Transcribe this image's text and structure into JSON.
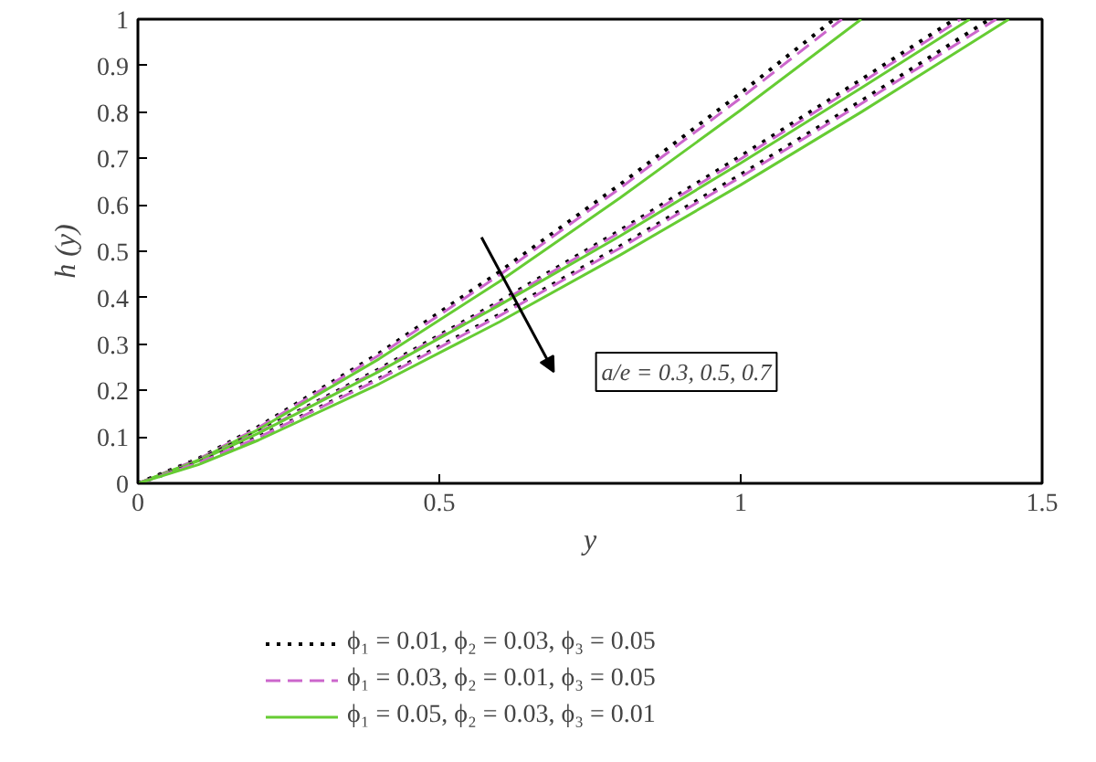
{
  "chart_data": {
    "type": "line",
    "xlabel": "y",
    "ylabel": "h (y)",
    "xlim": [
      0,
      1.5
    ],
    "ylim": [
      0,
      1
    ],
    "xticks": [
      0,
      0.5,
      1,
      1.5
    ],
    "yticks": [
      0,
      0.1,
      0.2,
      0.3,
      0.4,
      0.5,
      0.6,
      0.7,
      0.8,
      0.9,
      1
    ],
    "legend": "bottom",
    "series": [
      {
        "name": "ϕ₁ = 0.01, ϕ₂ = 0.03, ϕ₃ = 0.05",
        "color": "#000000",
        "line_style": "dotted",
        "x": [
          0,
          0.1,
          0.2,
          0.4,
          0.6,
          0.8,
          1.0,
          1.155
        ],
        "values": [
          0,
          0.053,
          0.122,
          0.28,
          0.456,
          0.644,
          0.841,
          1
        ]
      },
      {
        "name": "ϕ₁ = 0.03, ϕ₂ = 0.01, ϕ₃ = 0.05",
        "color": "#cc66cc",
        "line_style": "dashed",
        "x": [
          0,
          0.1,
          0.2,
          0.4,
          0.6,
          0.8,
          1.0,
          1.168
        ],
        "values": [
          0,
          0.052,
          0.12,
          0.276,
          0.449,
          0.636,
          0.83,
          1
        ]
      },
      {
        "name": "ϕ₁ = 0.05, ϕ₂ = 0.03, ϕ₃ = 0.01",
        "color": "#66cc33",
        "line_style": "solid",
        "x": [
          0,
          0.1,
          0.2,
          0.4,
          0.6,
          0.8,
          1.0,
          1.2
        ],
        "values": [
          0,
          0.05,
          0.116,
          0.268,
          0.435,
          0.615,
          0.804,
          1
        ]
      },
      {
        "color": "#000000",
        "line_style": "dotted",
        "x": [
          0,
          0.1,
          0.2,
          0.4,
          0.6,
          0.8,
          1.0,
          1.2,
          1.355
        ],
        "values": [
          0,
          0.05,
          0.111,
          0.246,
          0.392,
          0.545,
          0.705,
          0.87,
          1
        ]
      },
      {
        "color": "#cc66cc",
        "line_style": "dashed",
        "x": [
          0,
          0.1,
          0.2,
          0.4,
          0.6,
          0.8,
          1.0,
          1.2,
          1.365
        ],
        "values": [
          0,
          0.049,
          0.11,
          0.244,
          0.389,
          0.541,
          0.699,
          0.863,
          1
        ]
      },
      {
        "color": "#66cc33",
        "line_style": "solid",
        "x": [
          0,
          0.1,
          0.2,
          0.4,
          0.6,
          0.8,
          1.0,
          1.2,
          1.38
        ],
        "values": [
          0,
          0.048,
          0.108,
          0.241,
          0.384,
          0.533,
          0.69,
          0.852,
          1
        ]
      },
      {
        "color": "#000000",
        "line_style": "dotted",
        "x": [
          0,
          0.1,
          0.2,
          0.4,
          0.6,
          0.8,
          1.0,
          1.2,
          1.413
        ],
        "values": [
          0,
          0.044,
          0.1,
          0.226,
          0.364,
          0.511,
          0.665,
          0.824,
          1
        ]
      },
      {
        "color": "#cc66cc",
        "line_style": "dashed",
        "x": [
          0,
          0.1,
          0.2,
          0.4,
          0.6,
          0.8,
          1.0,
          1.2,
          1.424
        ],
        "values": [
          0,
          0.044,
          0.099,
          0.224,
          0.361,
          0.507,
          0.66,
          0.818,
          1
        ]
      },
      {
        "color": "#66cc33",
        "line_style": "solid",
        "x": [
          0,
          0.1,
          0.2,
          0.4,
          0.6,
          0.8,
          1.0,
          1.2,
          1.445
        ],
        "values": [
          0,
          0.04,
          0.093,
          0.214,
          0.348,
          0.492,
          0.643,
          0.8,
          1
        ]
      }
    ],
    "annotations": [
      "a/e = 0.3, 0.5, 0.7"
    ]
  }
}
